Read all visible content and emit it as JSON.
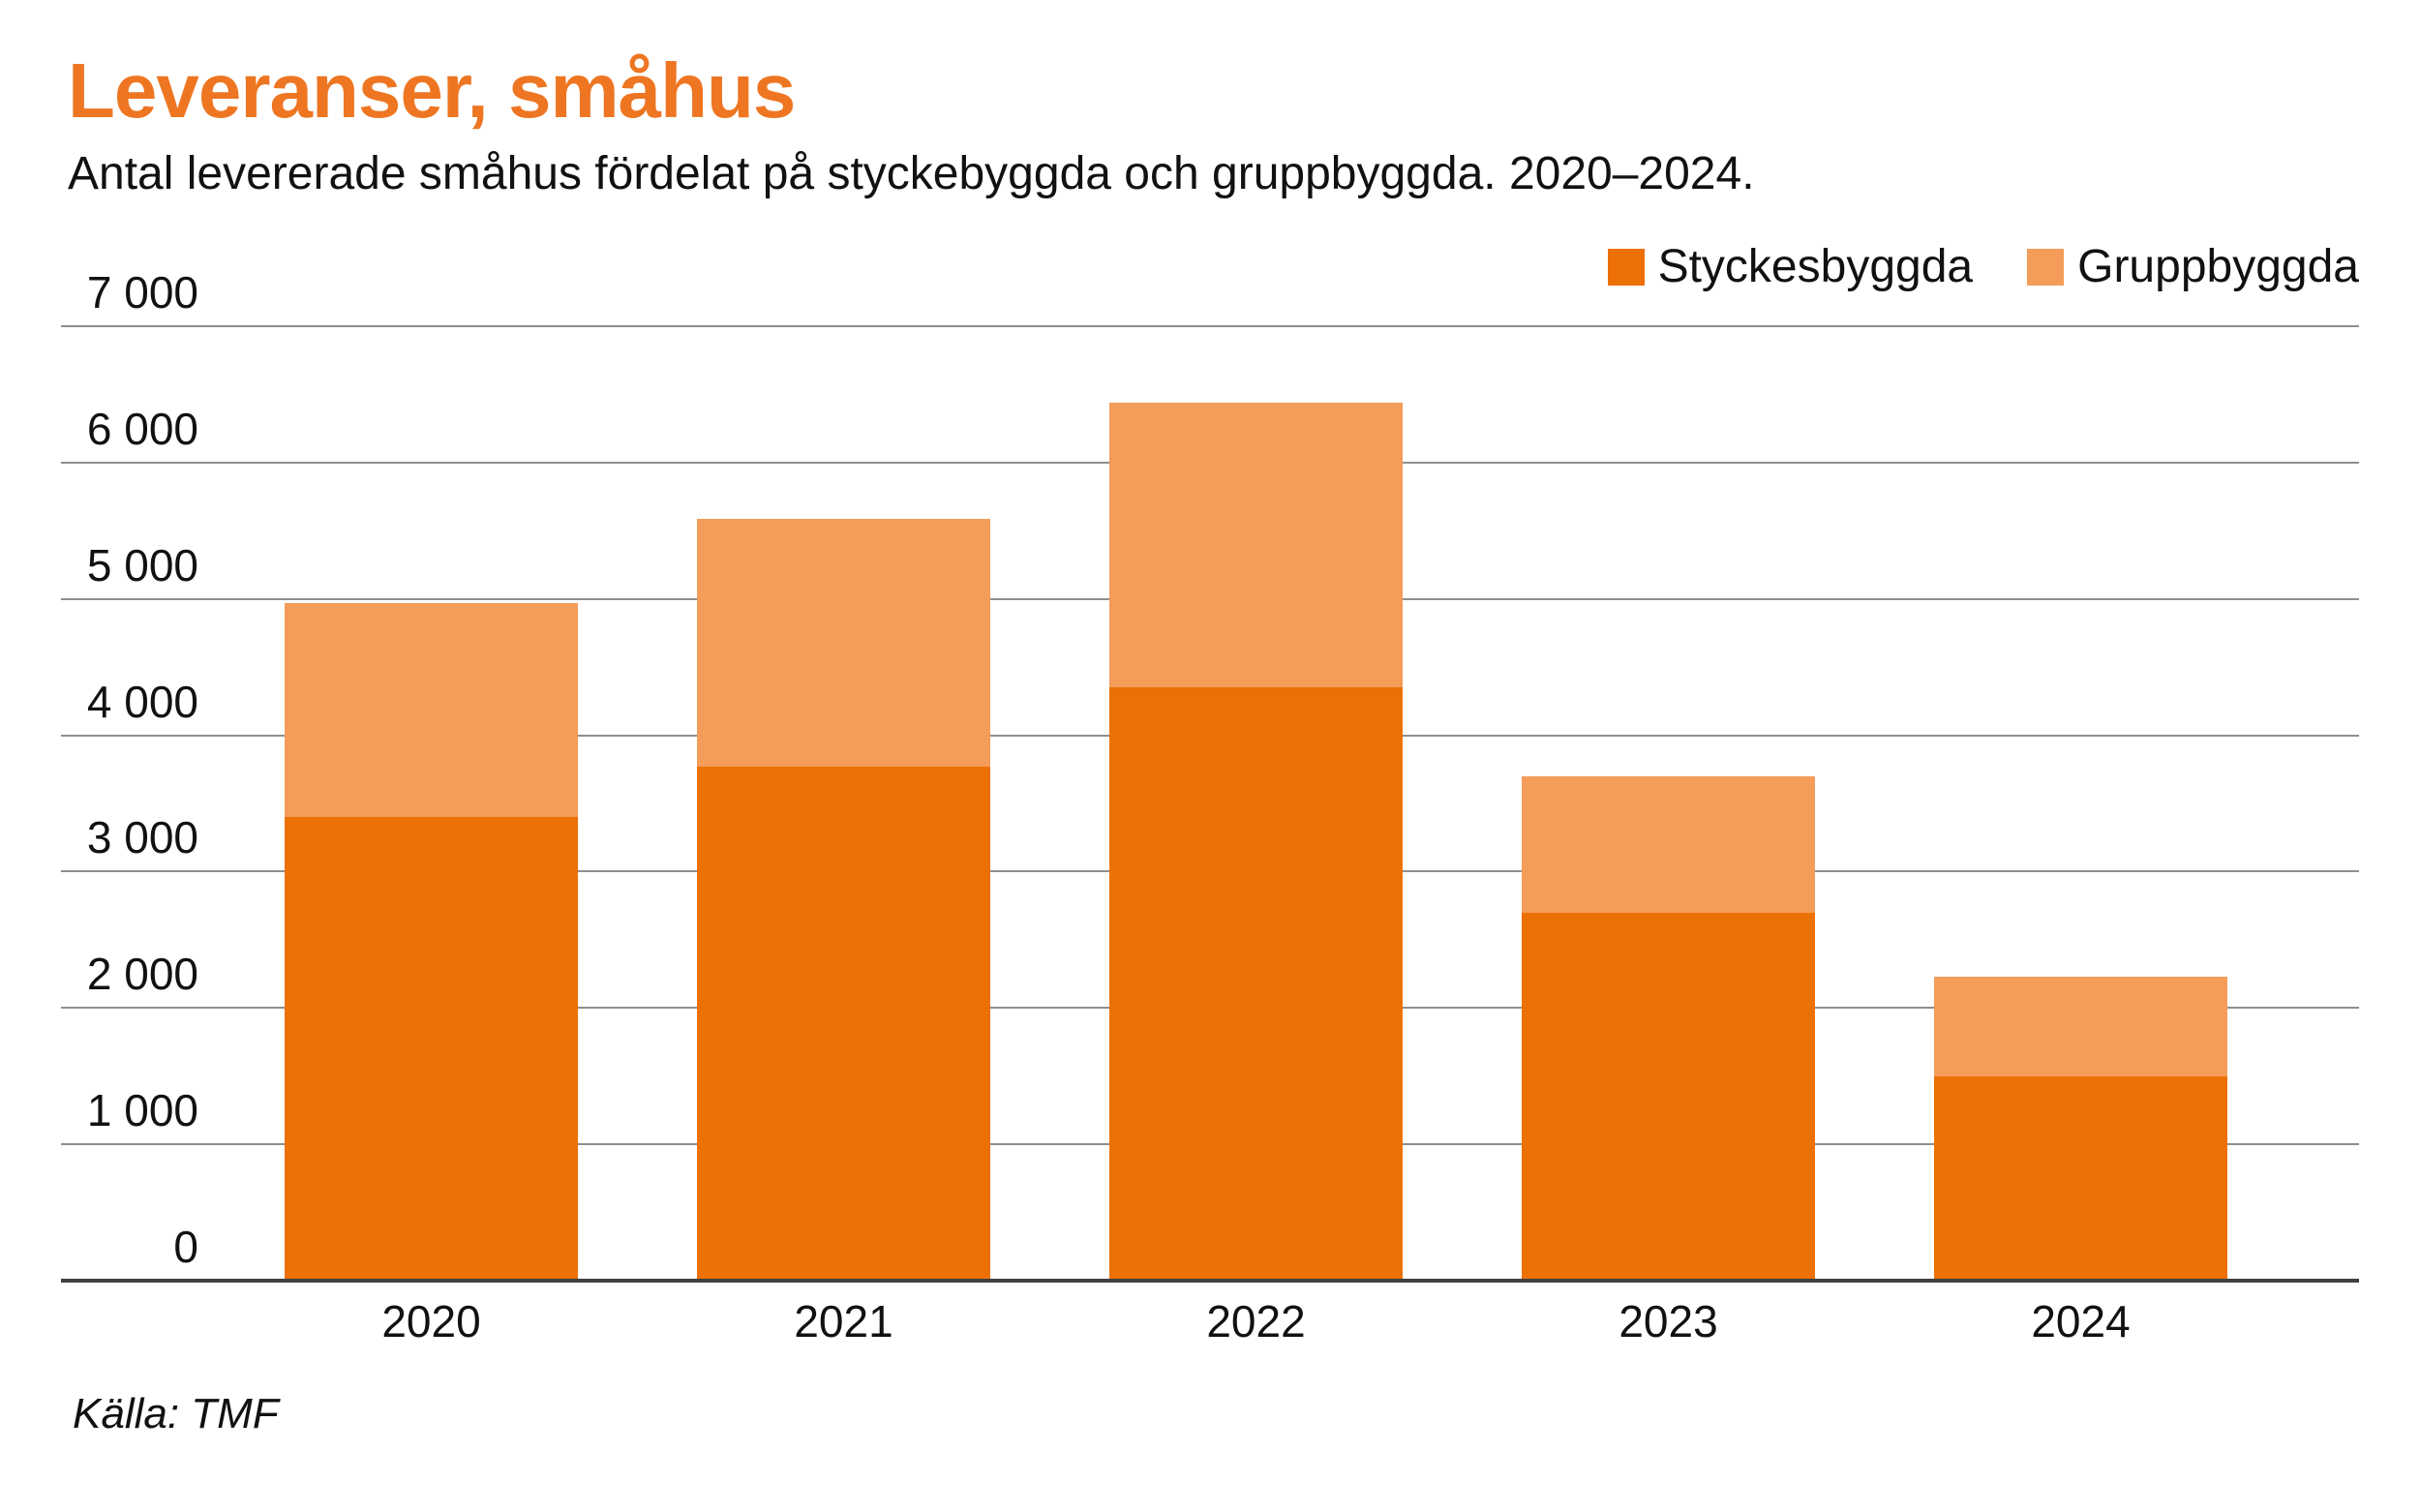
{
  "header": {
    "title": "Leveranser, småhus",
    "subtitle": "Antal levererade småhus fördelat på styckebyggda och gruppbyggda. 2020–2024."
  },
  "legend": {
    "items": [
      {
        "label": "Styckesbyggda",
        "color": "#ED7004"
      },
      {
        "label": "Gruppbyggda",
        "color": "#F49C59"
      }
    ]
  },
  "source": "Källa: TMF",
  "colors": {
    "title": "#EE7622",
    "styckesbyggda": "#ED7004",
    "gruppbyggda": "#F49C59",
    "gridline": "#8F8F8F",
    "axis": "#404040",
    "text": "#111111"
  },
  "chart_data": {
    "type": "bar",
    "stacked": true,
    "title": "Leveranser, småhus",
    "subtitle": "Antal levererade småhus fördelat på styckebyggda och gruppbyggda. 2020–2024.",
    "categories": [
      "2020",
      "2021",
      "2022",
      "2023",
      "2024"
    ],
    "series": [
      {
        "name": "Styckesbyggda",
        "color": "#ED7004",
        "values": [
          3400,
          3770,
          4350,
          2700,
          1500
        ]
      },
      {
        "name": "Gruppbyggda",
        "color": "#F49C59",
        "values": [
          1570,
          1820,
          2090,
          1000,
          730
        ]
      }
    ],
    "totals": [
      4970,
      5590,
      6440,
      3700,
      2230
    ],
    "xlabel": "",
    "ylabel": "",
    "ylim": [
      0,
      7000
    ],
    "ytick_interval": 1000,
    "ytick_labels": [
      "0",
      "1 000",
      "2 000",
      "3 000",
      "4 000",
      "5 000",
      "6 000",
      "7 000"
    ],
    "grid": "horizontal",
    "legend_position": "top-right",
    "source": "Källa: TMF"
  }
}
